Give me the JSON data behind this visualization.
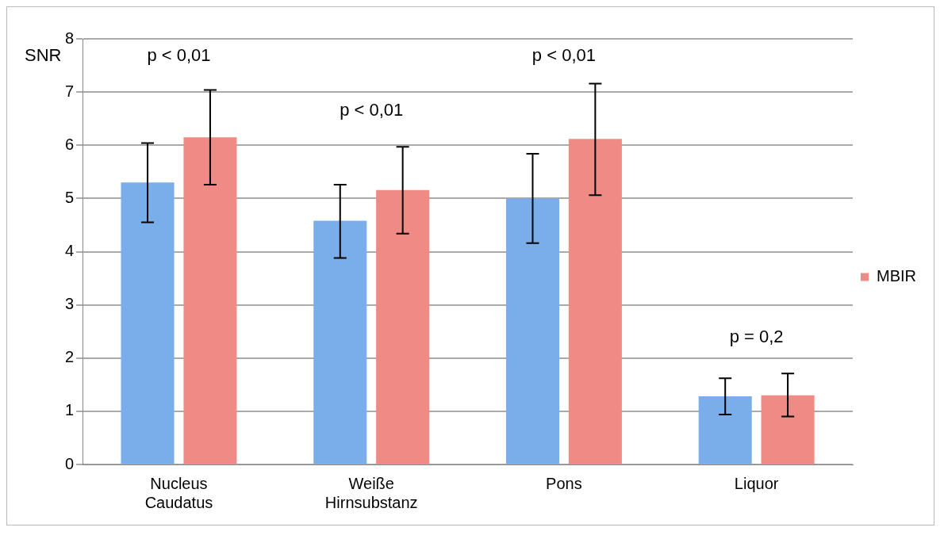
{
  "chart_data": {
    "type": "bar",
    "ylabel": "SNR",
    "categories": [
      "Nucleus Caudatus",
      "Weiße Hirnsubstanz",
      "Pons",
      "Liquor"
    ],
    "series": [
      {
        "color": "#79aeea",
        "values": [
          5.3,
          4.58,
          5.0,
          1.28
        ],
        "errors": [
          [
            4.55,
            6.04
          ],
          [
            3.88,
            5.26
          ],
          [
            4.16,
            5.84
          ],
          [
            0.94,
            1.62
          ]
        ]
      },
      {
        "name": "MBIR",
        "color": "#ef8a85",
        "values": [
          6.15,
          5.16,
          6.12,
          1.3
        ],
        "errors": [
          [
            5.26,
            7.04
          ],
          [
            4.34,
            5.97
          ],
          [
            5.06,
            7.16
          ],
          [
            0.9,
            1.71
          ]
        ]
      }
    ],
    "ylim": [
      0,
      8
    ],
    "yticks": [
      0,
      1,
      2,
      3,
      4,
      5,
      6,
      7,
      8
    ],
    "grid": "y",
    "legend": "right",
    "annotations": [
      "p < 0,01",
      "p < 0,01",
      "p < 0,01",
      "p = 0,2"
    ]
  }
}
